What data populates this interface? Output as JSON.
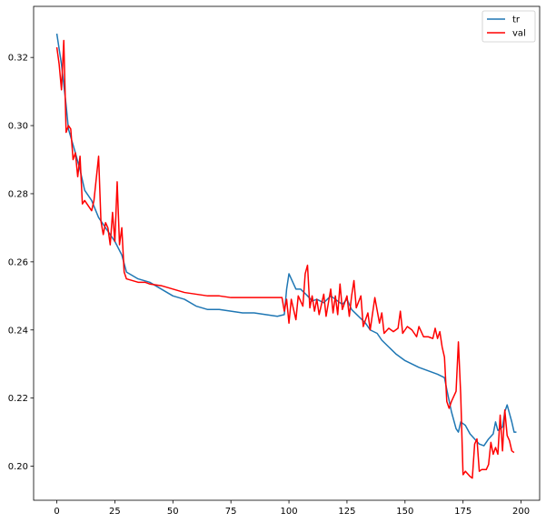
{
  "chart_data": {
    "type": "line",
    "title": "",
    "xlabel": "",
    "ylabel": "",
    "xlim": [
      -10,
      208
    ],
    "ylim": [
      0.19,
      0.335
    ],
    "xticks": [
      0,
      25,
      50,
      75,
      100,
      125,
      150,
      175,
      200
    ],
    "yticks": [
      0.2,
      0.22,
      0.24,
      0.26,
      0.28,
      0.3,
      0.32
    ],
    "grid": false,
    "legend_position": "top-right",
    "series": [
      {
        "name": "tr",
        "color": "#1f77b4",
        "points": [
          [
            0,
            0.327
          ],
          [
            2,
            0.318
          ],
          [
            4,
            0.306
          ],
          [
            5,
            0.299
          ],
          [
            8,
            0.292
          ],
          [
            10,
            0.287
          ],
          [
            12,
            0.281
          ],
          [
            15,
            0.278
          ],
          [
            18,
            0.273
          ],
          [
            20,
            0.271
          ],
          [
            25,
            0.266
          ],
          [
            28,
            0.262
          ],
          [
            30,
            0.257
          ],
          [
            35,
            0.255
          ],
          [
            40,
            0.254
          ],
          [
            45,
            0.252
          ],
          [
            50,
            0.25
          ],
          [
            55,
            0.249
          ],
          [
            60,
            0.247
          ],
          [
            65,
            0.246
          ],
          [
            70,
            0.246
          ],
          [
            75,
            0.2455
          ],
          [
            80,
            0.245
          ],
          [
            85,
            0.245
          ],
          [
            90,
            0.2445
          ],
          [
            95,
            0.244
          ],
          [
            98,
            0.2445
          ],
          [
            99,
            0.252
          ],
          [
            100,
            0.2565
          ],
          [
            101,
            0.255
          ],
          [
            103,
            0.252
          ],
          [
            105,
            0.252
          ],
          [
            108,
            0.25
          ],
          [
            110,
            0.2485
          ],
          [
            112,
            0.249
          ],
          [
            115,
            0.248
          ],
          [
            118,
            0.25
          ],
          [
            120,
            0.249
          ],
          [
            123,
            0.2475
          ],
          [
            125,
            0.249
          ],
          [
            127,
            0.246
          ],
          [
            130,
            0.244
          ],
          [
            133,
            0.242
          ],
          [
            135,
            0.24
          ],
          [
            138,
            0.239
          ],
          [
            140,
            0.237
          ],
          [
            143,
            0.235
          ],
          [
            146,
            0.233
          ],
          [
            150,
            0.231
          ],
          [
            153,
            0.23
          ],
          [
            156,
            0.229
          ],
          [
            160,
            0.228
          ],
          [
            164,
            0.227
          ],
          [
            167,
            0.226
          ],
          [
            168,
            0.2225
          ],
          [
            170,
            0.216
          ],
          [
            172,
            0.211
          ],
          [
            173,
            0.21
          ],
          [
            174,
            0.213
          ],
          [
            176,
            0.212
          ],
          [
            178,
            0.2095
          ],
          [
            180,
            0.208
          ],
          [
            182,
            0.2065
          ],
          [
            184,
            0.206
          ],
          [
            186,
            0.208
          ],
          [
            188,
            0.2095
          ],
          [
            189,
            0.213
          ],
          [
            190,
            0.2105
          ],
          [
            192,
            0.2115
          ],
          [
            193,
            0.216
          ],
          [
            194,
            0.218
          ],
          [
            196,
            0.213
          ],
          [
            197,
            0.21
          ],
          [
            198,
            0.21
          ]
        ]
      },
      {
        "name": "val",
        "color": "#ff0000",
        "points": [
          [
            0,
            0.323
          ],
          [
            1,
            0.318
          ],
          [
            2,
            0.3105
          ],
          [
            3,
            0.325
          ],
          [
            4,
            0.298
          ],
          [
            5,
            0.3
          ],
          [
            6,
            0.299
          ],
          [
            7,
            0.29
          ],
          [
            8,
            0.292
          ],
          [
            9,
            0.285
          ],
          [
            10,
            0.291
          ],
          [
            11,
            0.277
          ],
          [
            12,
            0.278
          ],
          [
            13,
            0.277
          ],
          [
            15,
            0.275
          ],
          [
            16,
            0.278
          ],
          [
            18,
            0.291
          ],
          [
            19,
            0.272
          ],
          [
            20,
            0.268
          ],
          [
            21,
            0.2715
          ],
          [
            22,
            0.27
          ],
          [
            23,
            0.265
          ],
          [
            24,
            0.2745
          ],
          [
            25,
            0.266
          ],
          [
            26,
            0.2835
          ],
          [
            27,
            0.265
          ],
          [
            28,
            0.27
          ],
          [
            29,
            0.257
          ],
          [
            30,
            0.255
          ],
          [
            35,
            0.254
          ],
          [
            38,
            0.254
          ],
          [
            40,
            0.2535
          ],
          [
            45,
            0.253
          ],
          [
            50,
            0.252
          ],
          [
            55,
            0.251
          ],
          [
            60,
            0.2505
          ],
          [
            65,
            0.25
          ],
          [
            70,
            0.25
          ],
          [
            75,
            0.2495
          ],
          [
            80,
            0.2495
          ],
          [
            85,
            0.2495
          ],
          [
            90,
            0.2495
          ],
          [
            95,
            0.2495
          ],
          [
            97,
            0.2495
          ],
          [
            98,
            0.2455
          ],
          [
            99,
            0.249
          ],
          [
            100,
            0.242
          ],
          [
            101,
            0.249
          ],
          [
            103,
            0.243
          ],
          [
            104,
            0.25
          ],
          [
            106,
            0.247
          ],
          [
            107,
            0.2565
          ],
          [
            108,
            0.259
          ],
          [
            109,
            0.2465
          ],
          [
            110,
            0.25
          ],
          [
            111,
            0.2455
          ],
          [
            112,
            0.249
          ],
          [
            113,
            0.2445
          ],
          [
            115,
            0.2505
          ],
          [
            116,
            0.244
          ],
          [
            118,
            0.252
          ],
          [
            119,
            0.245
          ],
          [
            120,
            0.25
          ],
          [
            121,
            0.2445
          ],
          [
            122,
            0.2535
          ],
          [
            123,
            0.246
          ],
          [
            125,
            0.25
          ],
          [
            126,
            0.244
          ],
          [
            127,
            0.25
          ],
          [
            128,
            0.2545
          ],
          [
            129,
            0.2465
          ],
          [
            131,
            0.25
          ],
          [
            132,
            0.241
          ],
          [
            134,
            0.245
          ],
          [
            135,
            0.24
          ],
          [
            137,
            0.2495
          ],
          [
            139,
            0.242
          ],
          [
            140,
            0.245
          ],
          [
            141,
            0.239
          ],
          [
            143,
            0.2405
          ],
          [
            145,
            0.2395
          ],
          [
            147,
            0.2405
          ],
          [
            148,
            0.2455
          ],
          [
            149,
            0.239
          ],
          [
            151,
            0.241
          ],
          [
            153,
            0.24
          ],
          [
            155,
            0.238
          ],
          [
            156,
            0.241
          ],
          [
            158,
            0.238
          ],
          [
            160,
            0.238
          ],
          [
            162,
            0.2375
          ],
          [
            163,
            0.2405
          ],
          [
            164,
            0.2375
          ],
          [
            165,
            0.2395
          ],
          [
            166,
            0.235
          ],
          [
            167,
            0.232
          ],
          [
            168,
            0.219
          ],
          [
            169,
            0.217
          ],
          [
            170,
            0.219
          ],
          [
            172,
            0.222
          ],
          [
            173,
            0.2365
          ],
          [
            174,
            0.221
          ],
          [
            175,
            0.1975
          ],
          [
            176,
            0.1985
          ],
          [
            178,
            0.197
          ],
          [
            179,
            0.1965
          ],
          [
            180,
            0.2065
          ],
          [
            181,
            0.208
          ],
          [
            182,
            0.1985
          ],
          [
            183,
            0.199
          ],
          [
            185,
            0.199
          ],
          [
            186,
            0.2005
          ],
          [
            187,
            0.207
          ],
          [
            188,
            0.2035
          ],
          [
            189,
            0.2055
          ],
          [
            190,
            0.2035
          ],
          [
            191,
            0.215
          ],
          [
            192,
            0.2045
          ],
          [
            193,
            0.2165
          ],
          [
            194,
            0.209
          ],
          [
            195,
            0.2075
          ],
          [
            196,
            0.2045
          ],
          [
            197,
            0.204
          ]
        ]
      }
    ]
  }
}
